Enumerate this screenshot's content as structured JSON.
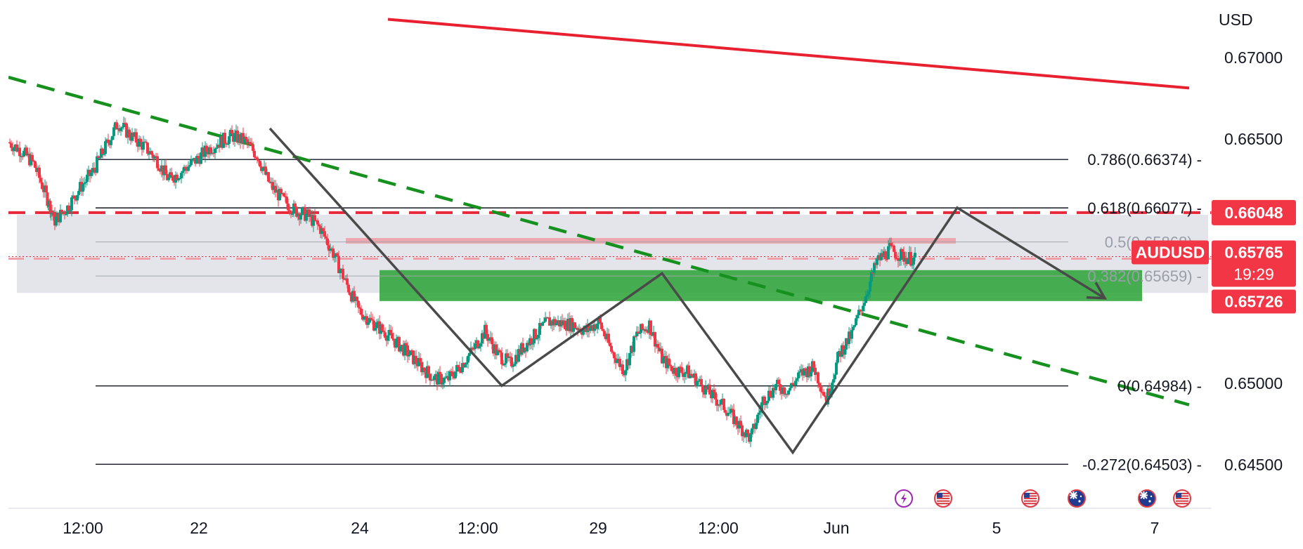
{
  "chart_data": {
    "type": "line",
    "symbol": "AUDUSD",
    "currency": "USD",
    "y_axis": {
      "ticks": [
        0.67,
        0.665,
        0.65,
        0.645
      ],
      "tick_labels": [
        "0.67000",
        "0.66500",
        "0.65000",
        "0.64500"
      ],
      "range": [
        0.643,
        0.6725
      ]
    },
    "x_axis": {
      "ticks": [
        "12:00",
        "22",
        "24",
        "12:00",
        "29",
        "12:00",
        "Jun",
        "5",
        "7"
      ]
    },
    "fibonacci_levels": [
      {
        "label": "0.786(0.66374)",
        "ratio": 0.786,
        "price": 0.66374,
        "faded": false
      },
      {
        "label": "0.618(0.66077)",
        "ratio": 0.618,
        "price": 0.66077,
        "faded": false
      },
      {
        "label": "0.5(0.65868)",
        "ratio": 0.5,
        "price": 0.65868,
        "faded": true
      },
      {
        "label": "0.382(0.65659)",
        "ratio": 0.382,
        "price": 0.65659,
        "faded": true
      },
      {
        "label": "0(0.64984)",
        "ratio": 0.0,
        "price": 0.64984,
        "faded": false
      },
      {
        "label": "-0.272(0.64503)",
        "ratio": -0.272,
        "price": 0.64503,
        "faded": false
      }
    ],
    "price_tags": {
      "resistance": "0.66048",
      "current_symbol": "AUDUSD",
      "current": "0.65765",
      "countdown": "19:29",
      "support": "0.65726"
    },
    "resistance_price": 0.66048,
    "current_price": 0.65765,
    "support_price": 0.65726,
    "zones": {
      "grey_resistance_zone": [
        0.65555,
        0.66035
      ],
      "green_support_zone": [
        0.65505,
        0.65695
      ],
      "pink_band": [
        0.65858,
        0.65892
      ]
    },
    "candles_close_path": [
      [
        0,
        0.6648
      ],
      [
        0.3,
        0.6643
      ],
      [
        0.6,
        0.6635
      ],
      [
        0.9,
        0.6615
      ],
      [
        1.1,
        0.66
      ],
      [
        1.4,
        0.6608
      ],
      [
        1.7,
        0.662
      ],
      [
        2.0,
        0.663
      ],
      [
        2.3,
        0.6645
      ],
      [
        2.6,
        0.666
      ],
      [
        2.9,
        0.6652
      ],
      [
        3.2,
        0.6646
      ],
      [
        3.5,
        0.6638
      ],
      [
        3.8,
        0.6625
      ],
      [
        4.1,
        0.663
      ],
      [
        4.4,
        0.6636
      ],
      [
        4.7,
        0.6643
      ],
      [
        5.0,
        0.6648
      ],
      [
        5.3,
        0.6652
      ],
      [
        5.6,
        0.6649
      ],
      [
        5.9,
        0.664
      ],
      [
        6.2,
        0.6622
      ],
      [
        6.5,
        0.6613
      ],
      [
        6.8,
        0.6606
      ],
      [
        7.1,
        0.6603
      ],
      [
        7.4,
        0.6595
      ],
      [
        7.7,
        0.658
      ],
      [
        8.0,
        0.6562
      ],
      [
        8.3,
        0.6545
      ],
      [
        8.6,
        0.6538
      ],
      [
        8.9,
        0.6532
      ],
      [
        9.2,
        0.6525
      ],
      [
        9.5,
        0.6518
      ],
      [
        9.8,
        0.651
      ],
      [
        10.1,
        0.6503
      ],
      [
        10.4,
        0.6502
      ],
      [
        10.7,
        0.651
      ],
      [
        11.0,
        0.652
      ],
      [
        11.3,
        0.6532
      ],
      [
        11.6,
        0.6518
      ],
      [
        11.9,
        0.6512
      ],
      [
        12.2,
        0.6522
      ],
      [
        12.5,
        0.653
      ],
      [
        12.8,
        0.6538
      ],
      [
        13.1,
        0.6537
      ],
      [
        13.4,
        0.6536
      ],
      [
        13.7,
        0.6532
      ],
      [
        14.0,
        0.6538
      ],
      [
        14.3,
        0.652
      ],
      [
        14.6,
        0.6508
      ],
      [
        14.9,
        0.653
      ],
      [
        15.2,
        0.6536
      ],
      [
        15.5,
        0.6515
      ],
      [
        15.8,
        0.6508
      ],
      [
        16.1,
        0.6507
      ],
      [
        16.4,
        0.65
      ],
      [
        16.7,
        0.6492
      ],
      [
        17.0,
        0.6485
      ],
      [
        17.3,
        0.6475
      ],
      [
        17.6,
        0.6466
      ],
      [
        17.9,
        0.649
      ],
      [
        18.2,
        0.6498
      ],
      [
        18.5,
        0.6496
      ],
      [
        18.8,
        0.6506
      ],
      [
        19.1,
        0.651
      ],
      [
        19.4,
        0.649
      ],
      [
        19.7,
        0.6518
      ],
      [
        20.0,
        0.653
      ],
      [
        20.3,
        0.6552
      ],
      [
        20.6,
        0.6575
      ],
      [
        20.9,
        0.6582
      ],
      [
        21.2,
        0.6578
      ],
      [
        21.5,
        0.6576
      ]
    ],
    "trend_lines": {
      "red_long_term": [
        [
          9.0,
          0.67235
        ],
        [
          28.0,
          0.66813
        ]
      ],
      "green_dashed_downtrend": [
        [
          0.0,
          0.66879
        ],
        [
          28.0,
          0.64868
        ]
      ]
    },
    "projection_zigzag": [
      [
        6.2,
        0.66565
      ],
      [
        11.7,
        0.64985
      ],
      [
        15.5,
        0.65675
      ],
      [
        18.6,
        0.64575
      ],
      [
        22.5,
        0.66078
      ],
      [
        26.0,
        0.65522
      ]
    ],
    "event_icons": [
      "flash-icon",
      "us-flag-icon",
      "us-flag-icon",
      "australia-flag-icon",
      "australia-flag-icon",
      "us-flag-icon"
    ]
  }
}
